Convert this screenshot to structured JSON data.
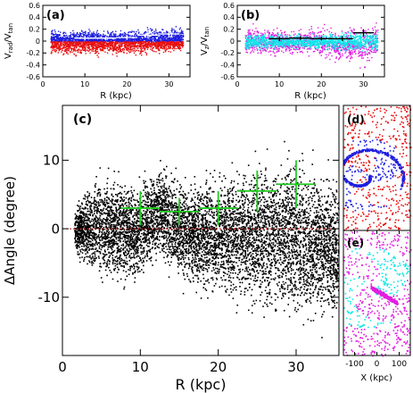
{
  "colors": {
    "blue": "#1f1fe0",
    "red": "#e81010",
    "magenta": "#e020e0",
    "cyan": "#10e8e8",
    "black": "#000000",
    "green": "#22cc22",
    "white": "#ffffff",
    "zero_line": "#cc0000"
  },
  "chart_data": [
    {
      "id": "a",
      "type": "scatter",
      "panel_label": "(a)",
      "ylabel": "V_rad/V_tan",
      "ylabel_main": "V",
      "ylabel_sub": "rad",
      "ylabel_sep": "/V",
      "ylabel_sub2": "tan",
      "xlabel": "R  (kpc)",
      "xlim": [
        0,
        35
      ],
      "ylim": [
        -0.6,
        0.6
      ],
      "xticks": [
        "0",
        "10",
        "20",
        "30"
      ],
      "xtick_vals": [
        0,
        10,
        20,
        30
      ],
      "yticks": [
        "0.6",
        "0.4",
        "0.2",
        "0",
        "-0.2",
        "-0.4",
        "-0.6"
      ],
      "ytick_vals": [
        0.6,
        0.4,
        0.2,
        0,
        -0.2,
        -0.4,
        -0.6
      ],
      "series": [
        {
          "color": "blue",
          "sign": 1,
          "band": [
            [
              2,
              0.25
            ],
            [
              5,
              0.23
            ],
            [
              10,
              0.22
            ],
            [
              15,
              0.22
            ],
            [
              20,
              0.24
            ],
            [
              25,
              0.27
            ],
            [
              30,
              0.3
            ],
            [
              33,
              0.32
            ]
          ]
        },
        {
          "color": "red",
          "sign": -1,
          "band": [
            [
              2,
              0.3
            ],
            [
              5,
              0.3
            ],
            [
              10,
              0.28
            ],
            [
              15,
              0.27
            ],
            [
              20,
              0.27
            ],
            [
              25,
              0.24
            ],
            [
              30,
              0.22
            ],
            [
              33,
              0.2
            ]
          ]
        }
      ],
      "errorbars": {
        "color": "white",
        "x": [
          10,
          15,
          20,
          25,
          30
        ],
        "y": [
          0.05,
          0.05,
          0.06,
          0.1,
          0.12
        ],
        "xerr": [
          2.5,
          2.5,
          2.5,
          2.5,
          2.5
        ],
        "yerr": [
          0.04,
          0.03,
          0.04,
          0.05,
          0.06
        ]
      }
    },
    {
      "id": "b",
      "type": "scatter",
      "panel_label": "(b)",
      "ylabel": "V_z/V_tan",
      "ylabel_main": "V",
      "ylabel_sub": "z",
      "ylabel_sep": "/V",
      "ylabel_sub2": "tan",
      "xlabel": "R  (kpc)",
      "xlim": [
        0,
        35
      ],
      "ylim": [
        -0.6,
        0.6
      ],
      "xticks": [
        "0",
        "10",
        "20",
        "30"
      ],
      "xtick_vals": [
        0,
        10,
        20,
        30
      ],
      "yticks": [
        "0.6",
        "0.4",
        "0.2",
        "0",
        "-0.2",
        "-0.4",
        "-0.6"
      ],
      "ytick_vals": [
        0.6,
        0.4,
        0.2,
        0,
        -0.2,
        -0.4,
        -0.6
      ],
      "series": [
        {
          "color": "magenta",
          "sign": 0,
          "band": [
            [
              2,
              0.3
            ],
            [
              8,
              0.28
            ],
            [
              15,
              0.22
            ],
            [
              20,
              0.3
            ],
            [
              26,
              0.35
            ],
            [
              33,
              0.4
            ]
          ]
        },
        {
          "color": "cyan",
          "sign": 0,
          "band": [
            [
              2,
              0.2
            ],
            [
              8,
              0.2
            ],
            [
              15,
              0.18
            ],
            [
              20,
              0.2
            ],
            [
              26,
              0.25
            ],
            [
              33,
              0.28
            ]
          ]
        }
      ],
      "errorbars": {
        "color": "black",
        "x": [
          10,
          15,
          20,
          25,
          30
        ],
        "y": [
          0.04,
          0.05,
          0.04,
          0.04,
          0.14
        ],
        "xerr": [
          2.5,
          2.5,
          2.5,
          2.5,
          2.5
        ],
        "yerr": [
          0.04,
          0.03,
          0.03,
          0.04,
          0.06
        ]
      }
    },
    {
      "id": "c",
      "type": "scatter",
      "panel_label": "(c)",
      "ylabel": "ΔAngle  (degree)",
      "xlabel": "R  (kpc)",
      "xlim": [
        0,
        35.5
      ],
      "ylim": [
        -18.5,
        18
      ],
      "xticks": [
        "0",
        "10",
        "20",
        "30"
      ],
      "xtick_vals": [
        0,
        10,
        20,
        30
      ],
      "yticks": [
        "10",
        "0",
        "-10"
      ],
      "ytick_vals": [
        10,
        0,
        -10
      ],
      "series": [
        {
          "color": "black",
          "envelope": [
            [
              1.5,
              4,
              -4
            ],
            [
              3,
              8,
              -8
            ],
            [
              5,
              11,
              -10
            ],
            [
              7,
              11,
              -11
            ],
            [
              9,
              9,
              -10
            ],
            [
              11,
              10,
              -8
            ],
            [
              12.5,
              12,
              -6
            ],
            [
              14,
              11,
              -9
            ],
            [
              16,
              9,
              -10
            ],
            [
              18,
              10,
              -12
            ],
            [
              20,
              11,
              -13
            ],
            [
              22,
              12,
              -13
            ],
            [
              24,
              13,
              -14
            ],
            [
              26,
              14,
              -16
            ],
            [
              28,
              15,
              -16
            ],
            [
              30,
              14,
              -17
            ],
            [
              32,
              13,
              -17
            ],
            [
              34,
              12,
              -17
            ],
            [
              35.5,
              11,
              -17
            ]
          ]
        }
      ],
      "zero_line": {
        "y": 0,
        "color": "zero_line"
      },
      "errorbars": {
        "color": "green",
        "x": [
          10,
          15,
          20,
          25,
          30
        ],
        "y": [
          3,
          2.5,
          3,
          5.5,
          6.5
        ],
        "xerr": [
          2.5,
          2.5,
          2.5,
          2.5,
          2.5
        ],
        "yerr": [
          2.5,
          2,
          2.5,
          3,
          3.5
        ]
      }
    },
    {
      "id": "d",
      "type": "scatter",
      "panel_label": "(d)",
      "xlim": [
        -150,
        150
      ],
      "ylim": [
        -150,
        150
      ],
      "series": [
        {
          "color": "red"
        },
        {
          "color": "blue"
        }
      ]
    },
    {
      "id": "e",
      "type": "scatter",
      "panel_label": "(e)",
      "xlabel": "X  (kpc)",
      "xlim": [
        -150,
        150
      ],
      "ylim": [
        -150,
        150
      ],
      "xticks": [
        "-100",
        "0",
        "100"
      ],
      "xtick_vals": [
        -100,
        0,
        100
      ],
      "series": [
        {
          "color": "magenta"
        },
        {
          "color": "cyan"
        }
      ]
    }
  ]
}
